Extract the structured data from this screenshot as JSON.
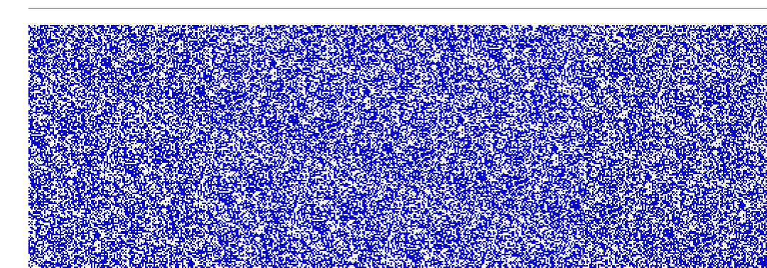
{
  "colors": {
    "background": "#ffffff",
    "rule": "#606060",
    "noise_fill": "#0000cc"
  },
  "image": {
    "kind": "random-dot noise pattern",
    "fill_fraction": 0.55
  }
}
